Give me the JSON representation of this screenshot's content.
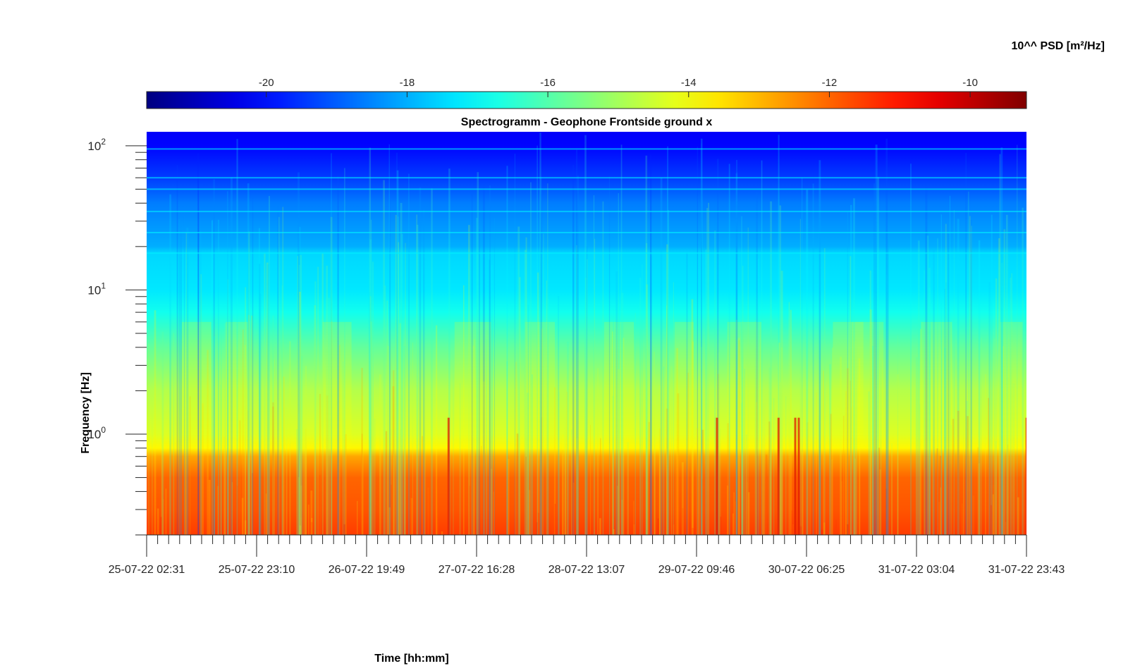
{
  "chart_data": {
    "type": "heatmap",
    "title": "Spectrogramm - Geophone Frontside ground x",
    "xlabel": "Time [hh:mm]",
    "ylabel": "Frequency [Hz]",
    "x_tick_labels": [
      "25-07-22 02:31",
      "25-07-22 23:10",
      "26-07-22 19:49",
      "27-07-22 16:28",
      "28-07-22 13:07",
      "29-07-22 09:46",
      "30-07-22 06:25",
      "31-07-22 03:04",
      "31-07-22 23:43"
    ],
    "x_range": [
      "25-07-22 02:31",
      "31-07-22 23:43"
    ],
    "y_scale": "log",
    "y_range": [
      0.2,
      125
    ],
    "y_tick_labels": [
      {
        "base": "10",
        "exp": "0",
        "value": 1
      },
      {
        "base": "10",
        "exp": "1",
        "value": 10
      },
      {
        "base": "10",
        "exp": "2",
        "value": 100
      }
    ],
    "colorbar": {
      "label": "10^^ PSD [m²/Hz]",
      "location": "top",
      "range": [
        -21.7,
        -9.2
      ],
      "tick_labels": [
        "-20",
        "-18",
        "-16",
        "-14",
        "-12",
        "-10"
      ],
      "tick_values": [
        -20,
        -18,
        -16,
        -14,
        -12,
        -10
      ],
      "colormap": "jet"
    },
    "psd_profile_log10": [
      {
        "freq_hz": 0.2,
        "log_psd": -11.5
      },
      {
        "freq_hz": 0.3,
        "log_psd": -11.8
      },
      {
        "freq_hz": 0.5,
        "log_psd": -12.0
      },
      {
        "freq_hz": 0.7,
        "log_psd": -12.8
      },
      {
        "freq_hz": 0.8,
        "log_psd": -13.8
      },
      {
        "freq_hz": 1,
        "log_psd": -14.3
      },
      {
        "freq_hz": 2,
        "log_psd": -14.8
      },
      {
        "freq_hz": 4,
        "log_psd": -15.8
      },
      {
        "freq_hz": 7,
        "log_psd": -16.8
      },
      {
        "freq_hz": 10,
        "log_psd": -17.3
      },
      {
        "freq_hz": 18,
        "log_psd": -17.5
      },
      {
        "freq_hz": 20,
        "log_psd": -18.0
      },
      {
        "freq_hz": 40,
        "log_psd": -18.6
      },
      {
        "freq_hz": 60,
        "log_psd": -19.4
      },
      {
        "freq_hz": 100,
        "log_psd": -20.1
      },
      {
        "freq_hz": 125,
        "log_psd": -20.2
      }
    ],
    "grid": false
  }
}
